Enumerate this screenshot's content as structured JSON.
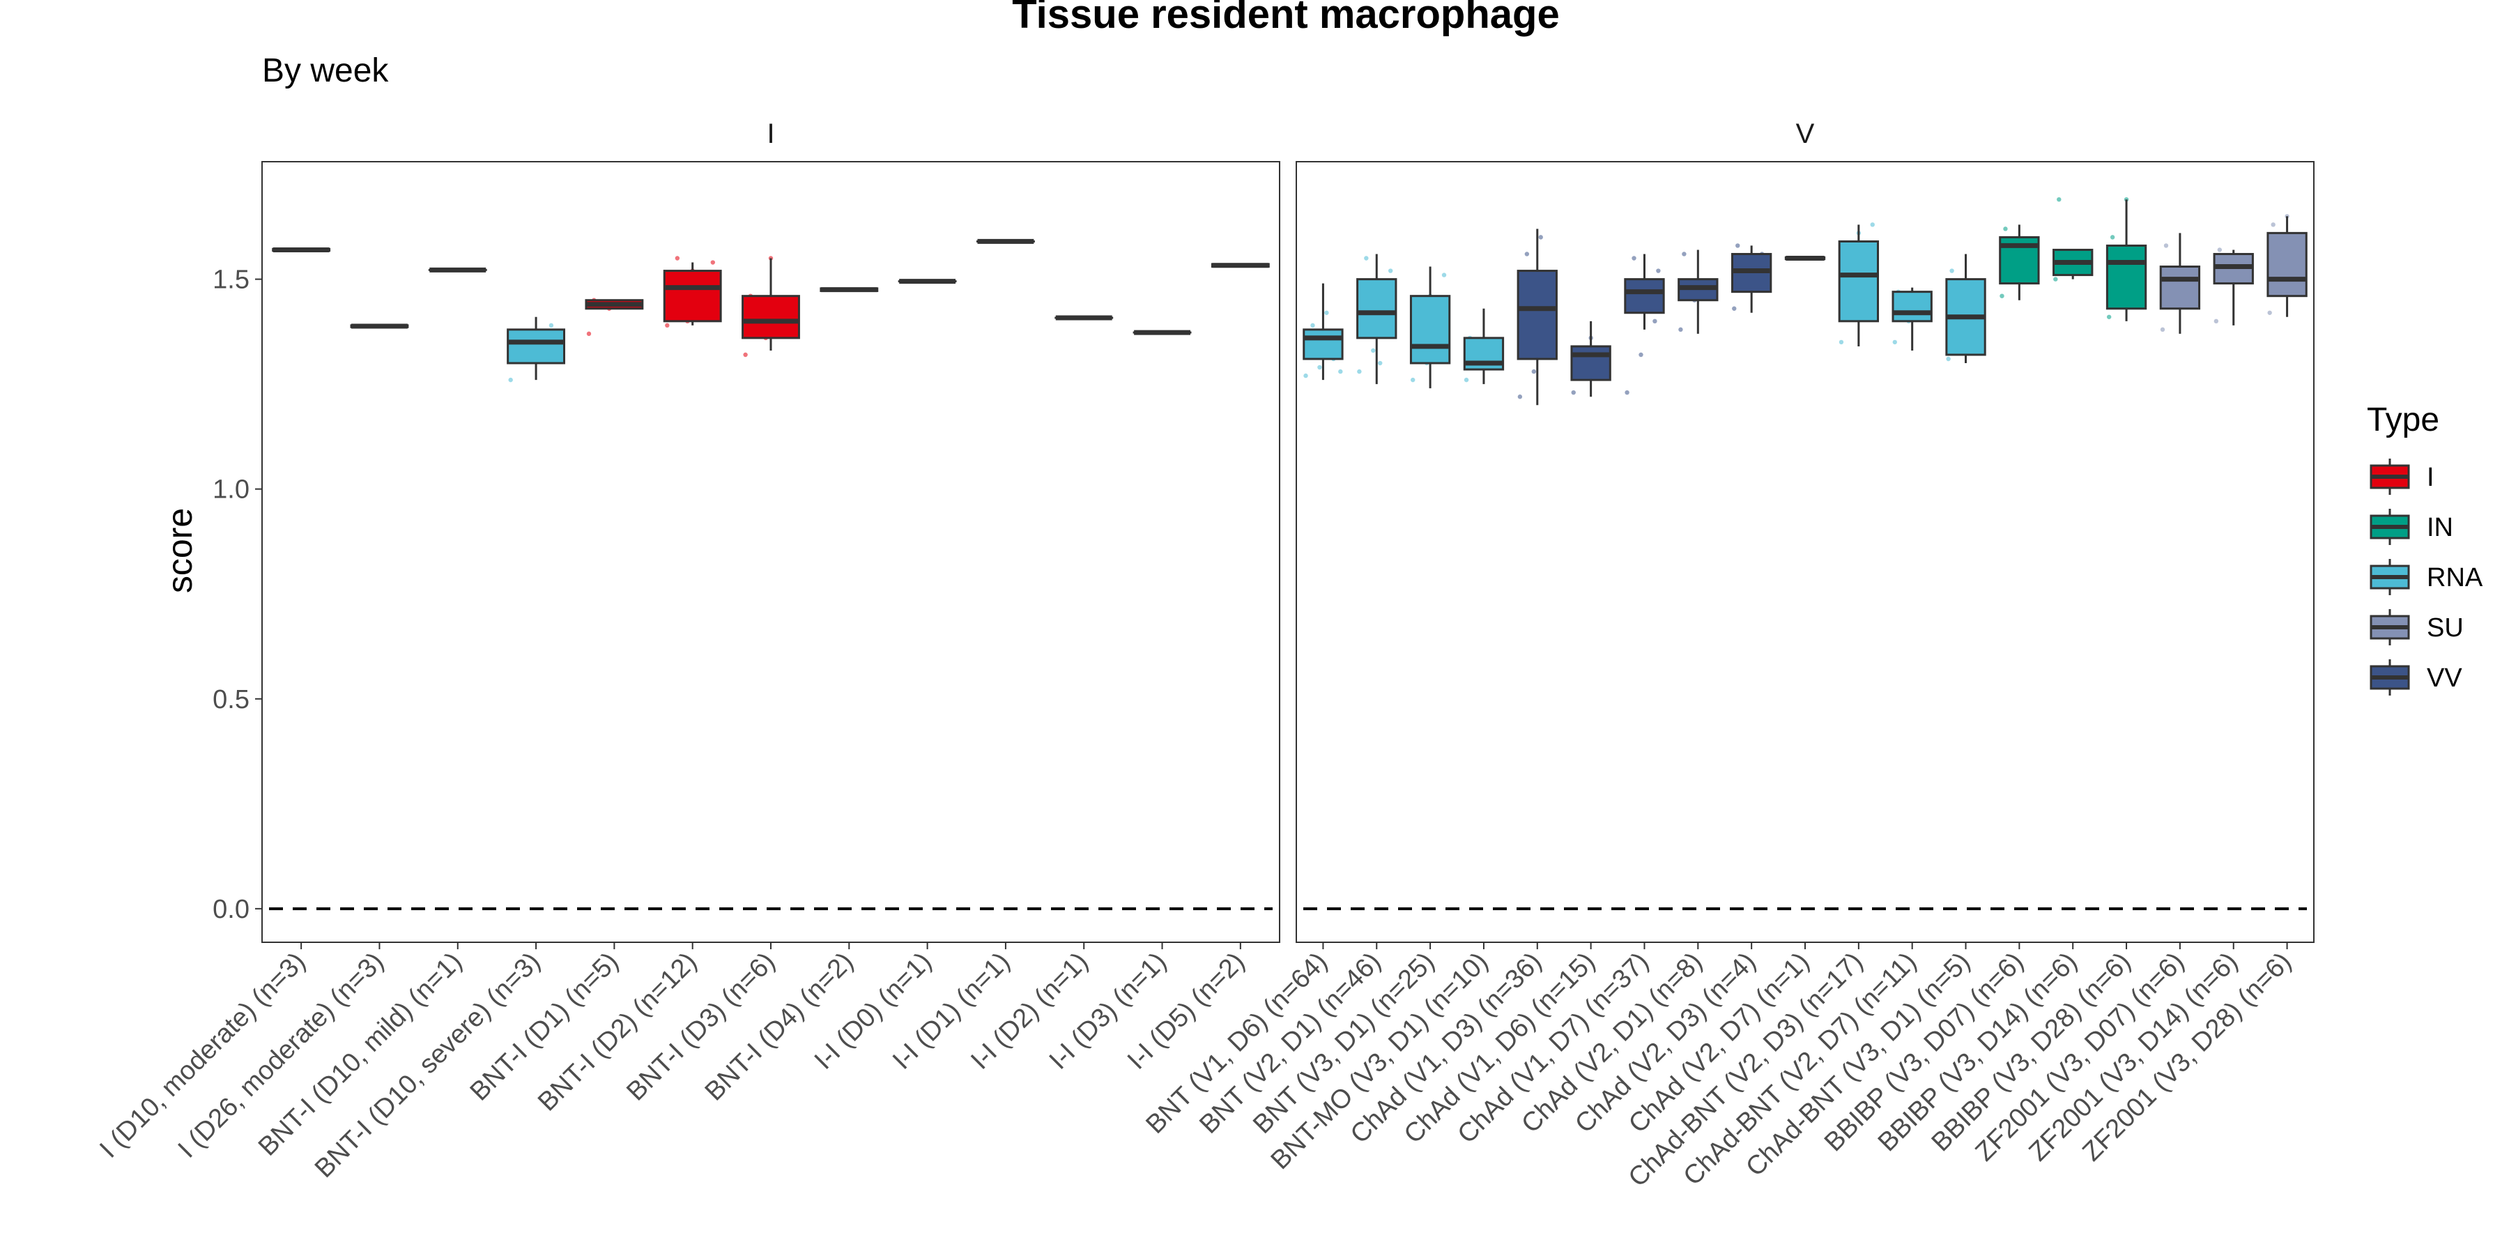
{
  "chart_data": {
    "type": "boxplot",
    "title": "Tissue resident macrophage",
    "subtitle": "By week",
    "ylabel": "score",
    "xlabel": "",
    "ylim": [
      -0.08,
      1.78
    ],
    "yticks": [
      0.0,
      0.5,
      1.0,
      1.5
    ],
    "ytick_labels": [
      "0.0",
      "0.5",
      "1.0",
      "1.5"
    ],
    "reference_line": {
      "y": 0.0,
      "style": "dashed"
    },
    "legend": {
      "title": "Type",
      "position": "right",
      "items": [
        {
          "label": "I",
          "color": "#E3000F"
        },
        {
          "label": "IN",
          "color": "#009F86"
        },
        {
          "label": "RNA",
          "color": "#4DBBD5"
        },
        {
          "label": "SU",
          "color": "#8491B4"
        },
        {
          "label": "VV",
          "color": "#3C5488"
        }
      ]
    },
    "facets": [
      {
        "label": "I",
        "groups": [
          {
            "label": "I (D10, moderate) (n=3)",
            "type": "I",
            "q1": 1.568,
            "median": 1.57,
            "q3": 1.572,
            "whisker_low": 1.568,
            "whisker_high": 1.572
          },
          {
            "label": "I (D26, moderate) (n=3)",
            "type": "I",
            "q1": 1.386,
            "median": 1.388,
            "q3": 1.39,
            "whisker_low": 1.386,
            "whisker_high": 1.39
          },
          {
            "label": "BNT-I (D10, mild) (n=1)",
            "type": "I",
            "q1": 1.522,
            "median": 1.522,
            "q3": 1.522,
            "whisker_low": 1.522,
            "whisker_high": 1.522
          },
          {
            "label": "BNT-I (D10, severe) (n=3)",
            "type": "RNA",
            "q1": 1.3,
            "median": 1.35,
            "q3": 1.38,
            "whisker_low": 1.26,
            "whisker_high": 1.41,
            "points": [
              1.26,
              1.33,
              1.39
            ]
          },
          {
            "label": "BNT-I (D1) (n=5)",
            "type": "I",
            "q1": 1.43,
            "median": 1.44,
            "q3": 1.45,
            "whisker_low": 1.43,
            "whisker_high": 1.45,
            "points": [
              1.37,
              1.43,
              1.44,
              1.45
            ]
          },
          {
            "label": "BNT-I (D2) (n=12)",
            "type": "I",
            "q1": 1.4,
            "median": 1.48,
            "q3": 1.52,
            "whisker_low": 1.39,
            "whisker_high": 1.54,
            "points": [
              1.39,
              1.4,
              1.44,
              1.48,
              1.52,
              1.54,
              1.55
            ]
          },
          {
            "label": "BNT-I (D3) (n=6)",
            "type": "I",
            "q1": 1.36,
            "median": 1.4,
            "q3": 1.46,
            "whisker_low": 1.33,
            "whisker_high": 1.55,
            "points": [
              1.32,
              1.36,
              1.4,
              1.46,
              1.55
            ]
          },
          {
            "label": "BNT-I (D4) (n=2)",
            "type": "I",
            "q1": 1.472,
            "median": 1.475,
            "q3": 1.478,
            "whisker_low": 1.472,
            "whisker_high": 1.478
          },
          {
            "label": "I-I (D0) (n=1)",
            "type": "I",
            "q1": 1.495,
            "median": 1.495,
            "q3": 1.495,
            "whisker_low": 1.495,
            "whisker_high": 1.495
          },
          {
            "label": "I-I (D1) (n=1)",
            "type": "I",
            "q1": 1.59,
            "median": 1.59,
            "q3": 1.59,
            "whisker_low": 1.59,
            "whisker_high": 1.59
          },
          {
            "label": "I-I (D2) (n=1)",
            "type": "I",
            "q1": 1.408,
            "median": 1.408,
            "q3": 1.408,
            "whisker_low": 1.408,
            "whisker_high": 1.408
          },
          {
            "label": "I-I (D3) (n=1)",
            "type": "I",
            "q1": 1.373,
            "median": 1.373,
            "q3": 1.373,
            "whisker_low": 1.373,
            "whisker_high": 1.373
          },
          {
            "label": "I-I (D5) (n=2)",
            "type": "I",
            "q1": 1.53,
            "median": 1.533,
            "q3": 1.536,
            "whisker_low": 1.53,
            "whisker_high": 1.536
          }
        ]
      },
      {
        "label": "V",
        "groups": [
          {
            "label": "BNT (V1, D6) (n=64)",
            "type": "RNA",
            "q1": 1.31,
            "median": 1.36,
            "q3": 1.38,
            "whisker_low": 1.26,
            "whisker_high": 1.49,
            "points": [
              1.27,
              1.29,
              1.31,
              1.33,
              1.35,
              1.37,
              1.39,
              1.42,
              1.28,
              1.34
            ]
          },
          {
            "label": "BNT (V2, D1) (n=46)",
            "type": "RNA",
            "q1": 1.36,
            "median": 1.42,
            "q3": 1.5,
            "whisker_low": 1.25,
            "whisker_high": 1.56,
            "points": [
              1.28,
              1.33,
              1.38,
              1.42,
              1.46,
              1.52,
              1.55,
              1.3
            ]
          },
          {
            "label": "BNT (V3, D1) (n=25)",
            "type": "RNA",
            "q1": 1.3,
            "median": 1.34,
            "q3": 1.46,
            "whisker_low": 1.24,
            "whisker_high": 1.53,
            "points": [
              1.26,
              1.3,
              1.35,
              1.4,
              1.46,
              1.51
            ]
          },
          {
            "label": "BNT-MO (V3, D1) (n=10)",
            "type": "RNA",
            "q1": 1.285,
            "median": 1.3,
            "q3": 1.36,
            "whisker_low": 1.25,
            "whisker_high": 1.43,
            "points": [
              1.26,
              1.29,
              1.31,
              1.36
            ]
          },
          {
            "label": "ChAd (V1, D3) (n=36)",
            "type": "VV",
            "q1": 1.31,
            "median": 1.43,
            "q3": 1.52,
            "whisker_low": 1.2,
            "whisker_high": 1.62,
            "points": [
              1.22,
              1.28,
              1.33,
              1.4,
              1.45,
              1.5,
              1.56,
              1.6
            ]
          },
          {
            "label": "ChAd (V1, D6) (n=15)",
            "type": "VV",
            "q1": 1.26,
            "median": 1.32,
            "q3": 1.34,
            "whisker_low": 1.22,
            "whisker_high": 1.4,
            "points": [
              1.23,
              1.27,
              1.3,
              1.33,
              1.36
            ]
          },
          {
            "label": "ChAd (V1, D7) (n=37)",
            "type": "VV",
            "q1": 1.42,
            "median": 1.47,
            "q3": 1.5,
            "whisker_low": 1.38,
            "whisker_high": 1.56,
            "points": [
              1.23,
              1.32,
              1.4,
              1.44,
              1.48,
              1.52,
              1.55
            ]
          },
          {
            "label": "ChAd (V2, D1) (n=8)",
            "type": "VV",
            "q1": 1.45,
            "median": 1.48,
            "q3": 1.5,
            "whisker_low": 1.37,
            "whisker_high": 1.57,
            "points": [
              1.38,
              1.45,
              1.49,
              1.56
            ]
          },
          {
            "label": "ChAd (V2, D3) (n=4)",
            "type": "VV",
            "q1": 1.47,
            "median": 1.52,
            "q3": 1.56,
            "whisker_low": 1.42,
            "whisker_high": 1.58,
            "points": [
              1.43,
              1.5,
              1.56,
              1.58
            ]
          },
          {
            "label": "ChAd (V2, D7) (n=1)",
            "type": "VV",
            "q1": 1.548,
            "median": 1.55,
            "q3": 1.552,
            "whisker_low": 1.548,
            "whisker_high": 1.552
          },
          {
            "label": "ChAd-BNT (V2, D3) (n=17)",
            "type": "RNA",
            "q1": 1.4,
            "median": 1.51,
            "q3": 1.59,
            "whisker_low": 1.34,
            "whisker_high": 1.63,
            "points": [
              1.35,
              1.42,
              1.5,
              1.56,
              1.61,
              1.63
            ]
          },
          {
            "label": "ChAd-BNT (V2, D7) (n=11)",
            "type": "RNA",
            "q1": 1.4,
            "median": 1.42,
            "q3": 1.47,
            "whisker_low": 1.33,
            "whisker_high": 1.48,
            "points": [
              1.35,
              1.4,
              1.43,
              1.47
            ]
          },
          {
            "label": "ChAd-BNT (V3, D1) (n=5)",
            "type": "RNA",
            "q1": 1.32,
            "median": 1.41,
            "q3": 1.5,
            "whisker_low": 1.3,
            "whisker_high": 1.56,
            "points": [
              1.31,
              1.38,
              1.45,
              1.52
            ]
          },
          {
            "label": "BBIBP (V3, D07) (n=6)",
            "type": "IN",
            "q1": 1.49,
            "median": 1.58,
            "q3": 1.6,
            "whisker_low": 1.45,
            "whisker_high": 1.63,
            "points": [
              1.46,
              1.52,
              1.58,
              1.62
            ]
          },
          {
            "label": "BBIBP (V3, D14) (n=6)",
            "type": "IN",
            "q1": 1.51,
            "median": 1.54,
            "q3": 1.57,
            "whisker_low": 1.5,
            "whisker_high": 1.57,
            "points": [
              1.5,
              1.53,
              1.56,
              1.69
            ]
          },
          {
            "label": "BBIBP (V3, D28) (n=6)",
            "type": "IN",
            "q1": 1.43,
            "median": 1.54,
            "q3": 1.58,
            "whisker_low": 1.4,
            "whisker_high": 1.69,
            "points": [
              1.41,
              1.47,
              1.55,
              1.6,
              1.69
            ]
          },
          {
            "label": "ZF2001 (V3, D07) (n=6)",
            "type": "SU",
            "q1": 1.43,
            "median": 1.5,
            "q3": 1.53,
            "whisker_low": 1.37,
            "whisker_high": 1.61,
            "points": [
              1.38,
              1.45,
              1.5,
              1.58
            ]
          },
          {
            "label": "ZF2001 (V3, D14) (n=6)",
            "type": "SU",
            "q1": 1.49,
            "median": 1.53,
            "q3": 1.56,
            "whisker_low": 1.39,
            "whisker_high": 1.57,
            "points": [
              1.4,
              1.5,
              1.54,
              1.57
            ]
          },
          {
            "label": "ZF2001 (V3, D28) (n=6)",
            "type": "SU",
            "q1": 1.46,
            "median": 1.5,
            "q3": 1.61,
            "whisker_low": 1.41,
            "whisker_high": 1.65,
            "points": [
              1.42,
              1.48,
              1.55,
              1.63,
              1.65
            ]
          }
        ]
      }
    ]
  }
}
